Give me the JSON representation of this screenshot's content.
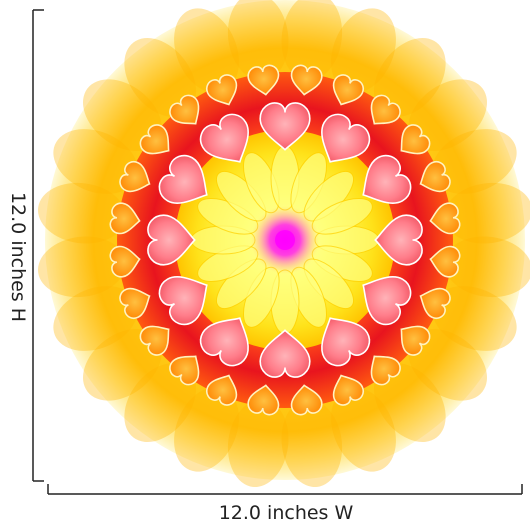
{
  "product": {
    "dimensions": {
      "height_label": "12.0 inches H",
      "width_label": "12.0 inches W"
    }
  },
  "artwork": {
    "subject": "heart mandala",
    "inner_hearts": 12,
    "outer_hearts": 24,
    "colors": {
      "center": "#ff00ff",
      "core_yellow": "#ffee33",
      "red_ring": "#ee1c24",
      "pink_heart": "#ff7d8a",
      "orange_heart": "#ff8a00",
      "halo_outer": "#fff6b0",
      "dimension_line": "#222222"
    }
  }
}
